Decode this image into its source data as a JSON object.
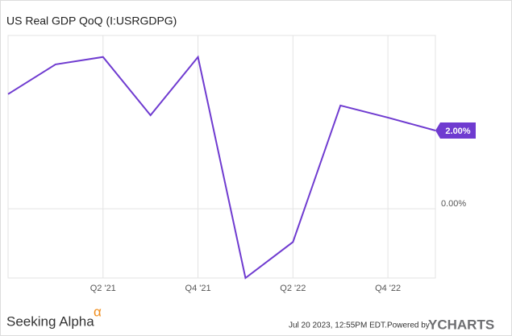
{
  "chart_data": {
    "type": "line",
    "title": "US Real GDP QoQ (I:USRGDPG)",
    "categories": [
      null,
      null,
      "Q2 '21",
      null,
      "Q4 '21",
      null,
      "Q2 '22",
      null,
      "Q4 '22",
      null
    ],
    "series": [
      {
        "name": "US Real GDP QoQ",
        "color": "#6f3bd0",
        "values": [
          2.93,
          3.69,
          3.88,
          2.39,
          3.88,
          -1.77,
          -0.85,
          2.64,
          2.33,
          2.0
        ],
        "value_labels": [
          null,
          null,
          null,
          null,
          null,
          null,
          null,
          null,
          null,
          "2.00%"
        ]
      }
    ],
    "ylim": [
      -1.77,
      4.43
    ],
    "yticks": [
      {
        "value": 0,
        "label": "0.00%"
      }
    ],
    "grid": true
  },
  "footer": {
    "brand": "Seeking Alpha",
    "brand_mark": "α",
    "timestamp": "Jul 20 2023, 12:55PM EDT.",
    "powered_by": "Powered by",
    "provider": "YCHARTS"
  }
}
